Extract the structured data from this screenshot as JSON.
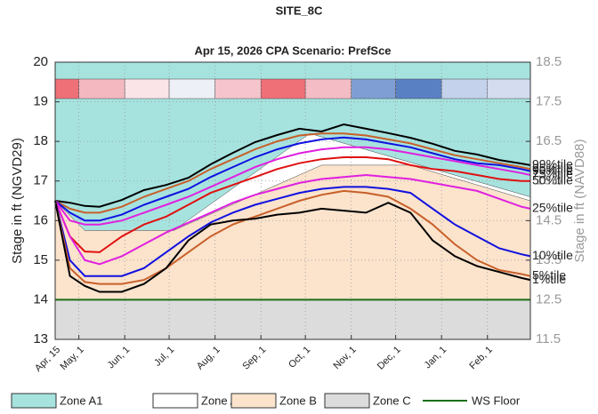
{
  "chart_data": {
    "type": "line",
    "title": "SITE_8C",
    "subtitle": "Apr 15, 2026  CPA Scenario: PrefSce",
    "y_label": "Stage in ft (NGVD29)",
    "y2_label": "Stage in ft (NAVD88)",
    "xlim": [
      0,
      321
    ],
    "xticks": [
      {
        "value": 0,
        "label": "Apr, 15"
      },
      {
        "value": 16,
        "label": "May, 1"
      },
      {
        "value": 47,
        "label": "Jun, 1"
      },
      {
        "value": 77,
        "label": "Jul, 1"
      },
      {
        "value": 108,
        "label": "Aug, 1"
      },
      {
        "value": 139,
        "label": "Sep, 1"
      },
      {
        "value": 169,
        "label": "Oct, 1"
      },
      {
        "value": 200,
        "label": "Nov, 1"
      },
      {
        "value": 230,
        "label": "Dec, 1"
      },
      {
        "value": 261,
        "label": "Jan, 1"
      },
      {
        "value": 292,
        "label": "Feb, 1"
      }
    ],
    "ylim": [
      13,
      20
    ],
    "yticks": [
      13,
      14,
      15,
      16,
      17,
      18,
      19,
      20
    ],
    "y2lim": [
      11.5,
      18.5
    ],
    "y2ticks": [
      11.5,
      12.5,
      13.5,
      14.5,
      15.5,
      16.5,
      17.5,
      18.5
    ],
    "grid": true,
    "month_strip_colors": [
      "#f07078",
      "#f4b8c0",
      "#fbe4e8",
      "#eef0f8",
      "#f6c4cc",
      "#f07078",
      "#f4bcc4",
      "#7f9fd4",
      "#5a80c4",
      "#c4d2ec",
      "#d4dcf0"
    ],
    "zones": [
      {
        "name": "Zone A1",
        "color": "#a6e3df",
        "x": [
          0,
          20,
          80,
          172,
          321
        ],
        "bottom": [
          16.5,
          15.75,
          15.75,
          18.2,
          16.6
        ]
      },
      {
        "name": "Zone A2",
        "color": "#ffffff",
        "x": [
          0,
          80,
          180,
          240,
          321
        ],
        "bottom": [
          16.4,
          15.75,
          17.4,
          17.4,
          16.5
        ]
      },
      {
        "name": "Zone B",
        "color": "#fbe3cc"
      },
      {
        "name": "Zone C",
        "color": "#dcdcdc"
      }
    ],
    "ws_floor": {
      "name": "WS Floor",
      "color": "#1a6e1a",
      "value": 14
    },
    "x": [
      0,
      10,
      20,
      30,
      45,
      60,
      75,
      90,
      105,
      120,
      135,
      150,
      165,
      180,
      195,
      210,
      225,
      240,
      255,
      270,
      285,
      300,
      315,
      321
    ],
    "series": [
      {
        "name": "99%tile",
        "color": "#000000",
        "values": [
          16.5,
          16.45,
          16.37,
          16.35,
          16.52,
          16.77,
          16.9,
          17.08,
          17.42,
          17.71,
          17.98,
          18.16,
          18.32,
          18.25,
          18.43,
          18.32,
          18.21,
          18.09,
          17.94,
          17.76,
          17.67,
          17.53,
          17.44,
          17.4
        ]
      },
      {
        "name": "95%tile",
        "color": "#c8602a",
        "values": [
          16.5,
          16.3,
          16.2,
          16.2,
          16.35,
          16.6,
          16.8,
          17.0,
          17.3,
          17.55,
          17.8,
          18.0,
          18.15,
          18.2,
          18.2,
          18.15,
          18.05,
          17.95,
          17.8,
          17.65,
          17.55,
          17.45,
          17.35,
          17.3
        ]
      },
      {
        "name": "90%tile",
        "color": "#1010e0",
        "values": [
          16.5,
          16.2,
          16.0,
          16.0,
          16.15,
          16.4,
          16.6,
          16.8,
          17.1,
          17.35,
          17.6,
          17.8,
          17.95,
          18.05,
          18.1,
          18.05,
          17.95,
          17.85,
          17.7,
          17.55,
          17.45,
          17.4,
          17.3,
          17.25
        ]
      },
      {
        "name": "75%tile",
        "color": "#e020e0",
        "values": [
          16.5,
          16.0,
          15.9,
          15.9,
          16.0,
          16.2,
          16.4,
          16.6,
          16.85,
          17.1,
          17.35,
          17.55,
          17.7,
          17.8,
          17.85,
          17.85,
          17.8,
          17.7,
          17.6,
          17.5,
          17.4,
          17.3,
          17.2,
          17.15
        ]
      },
      {
        "name": "50%tile",
        "color": "#e01010",
        "values": [
          16.5,
          15.6,
          15.22,
          15.2,
          15.6,
          15.9,
          16.1,
          16.4,
          16.7,
          16.9,
          17.1,
          17.3,
          17.45,
          17.55,
          17.6,
          17.6,
          17.55,
          17.4,
          17.3,
          17.25,
          17.15,
          17.05,
          17.0,
          17.0
        ]
      },
      {
        "name": "25%tile",
        "color": "#e020e0",
        "values": [
          16.5,
          15.6,
          15.0,
          14.9,
          15.1,
          15.4,
          15.7,
          15.95,
          16.2,
          16.45,
          16.65,
          16.8,
          16.95,
          17.05,
          17.1,
          17.15,
          17.1,
          17.05,
          16.95,
          16.85,
          16.75,
          16.55,
          16.35,
          16.3
        ]
      },
      {
        "name": "10%tile",
        "color": "#1010e0",
        "values": [
          16.5,
          15.0,
          14.6,
          14.6,
          14.6,
          14.8,
          15.2,
          15.6,
          15.95,
          16.2,
          16.4,
          16.55,
          16.7,
          16.8,
          16.85,
          16.85,
          16.8,
          16.7,
          16.3,
          15.9,
          15.6,
          15.3,
          15.15,
          15.1
        ]
      },
      {
        "name": "5%tile",
        "color": "#c8602a",
        "values": [
          16.5,
          14.8,
          14.45,
          14.4,
          14.4,
          14.5,
          14.8,
          15.2,
          15.6,
          15.9,
          16.1,
          16.3,
          16.5,
          16.65,
          16.75,
          16.7,
          16.6,
          16.3,
          15.9,
          15.4,
          15.0,
          14.75,
          14.65,
          14.6
        ]
      },
      {
        "name": "1%tile",
        "color": "#000000",
        "values": [
          16.5,
          14.6,
          14.35,
          14.2,
          14.2,
          14.4,
          14.8,
          15.5,
          15.9,
          16.0,
          16.05,
          16.15,
          16.2,
          16.3,
          16.25,
          16.2,
          16.45,
          16.2,
          15.5,
          15.1,
          14.85,
          14.7,
          14.55,
          14.5
        ]
      }
    ]
  }
}
